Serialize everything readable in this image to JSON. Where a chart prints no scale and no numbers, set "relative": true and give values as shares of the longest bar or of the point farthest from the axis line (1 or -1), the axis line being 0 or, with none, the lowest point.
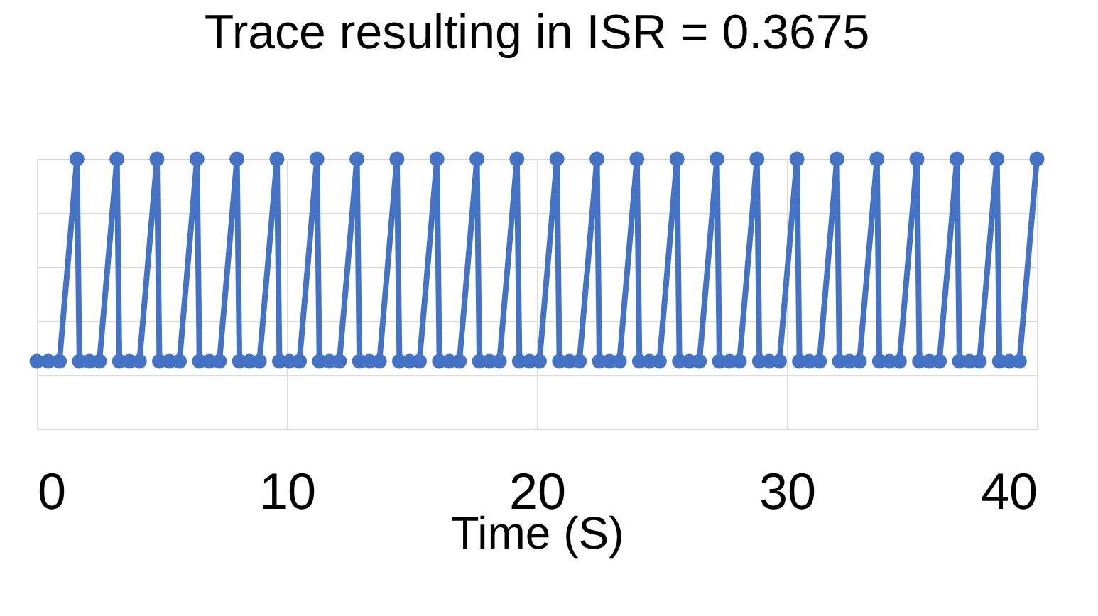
{
  "chart_data": {
    "type": "line",
    "title": "Trace resulting in ISR = 0.3675",
    "xlabel": "Time (S)",
    "relative": true,
    "xlim": [
      0,
      40
    ],
    "xticks": [
      0,
      10,
      20,
      30,
      40
    ],
    "grid": true,
    "marker": "circle",
    "line_style": "solid",
    "tick_labels": "x",
    "series": [
      {
        "color": "#4472c4",
        "x": [
          0,
          0.45,
          0.9,
          1.6,
          1.7,
          2.1,
          2.5,
          3.2,
          3.3,
          3.7,
          4.1,
          4.8,
          4.9,
          5.3,
          5.7,
          6.4,
          6.5,
          6.9,
          7.3,
          8,
          8.1,
          8.5,
          8.9,
          9.6,
          9.7,
          10.1,
          10.5,
          11.2,
          11.3,
          11.7,
          12.1,
          12.8,
          12.9,
          13.3,
          13.7,
          14.4,
          14.5,
          14.9,
          15.3,
          16,
          16.1,
          16.5,
          16.9,
          17.6,
          17.7,
          18.1,
          18.5,
          19.2,
          19.3,
          19.7,
          20.1,
          20.8,
          20.9,
          21.3,
          21.7,
          22.4,
          22.5,
          22.9,
          23.3,
          24,
          24.1,
          24.5,
          24.9,
          25.6,
          25.7,
          26.1,
          26.5,
          27.2,
          27.3,
          27.7,
          28.1,
          28.8,
          28.9,
          29.3,
          29.7,
          30.4,
          30.5,
          30.9,
          31.3,
          32,
          32.1,
          32.5,
          32.9,
          33.6,
          33.7,
          34.1,
          34.5,
          35.2,
          35.3,
          35.7,
          36.1,
          36.8,
          36.9,
          37.3,
          37.7,
          38.4,
          38.5,
          38.9,
          39.3,
          40
        ],
        "values": [
          0.25,
          0.25,
          0.25,
          1,
          0.25,
          0.25,
          0.25,
          1,
          0.25,
          0.25,
          0.25,
          1,
          0.25,
          0.25,
          0.25,
          1,
          0.25,
          0.25,
          0.25,
          1,
          0.25,
          0.25,
          0.25,
          1,
          0.25,
          0.25,
          0.25,
          1,
          0.25,
          0.25,
          0.25,
          1,
          0.25,
          0.25,
          0.25,
          1,
          0.25,
          0.25,
          0.25,
          1,
          0.25,
          0.25,
          0.25,
          1,
          0.25,
          0.25,
          0.25,
          1,
          0.25,
          0.25,
          0.25,
          1,
          0.25,
          0.25,
          0.25,
          1,
          0.25,
          0.25,
          0.25,
          1,
          0.25,
          0.25,
          0.25,
          1,
          0.25,
          0.25,
          0.25,
          1,
          0.25,
          0.25,
          0.25,
          1,
          0.25,
          0.25,
          0.25,
          1,
          0.25,
          0.25,
          0.25,
          1,
          0.25,
          0.25,
          0.25,
          1,
          0.25,
          0.25,
          0.25,
          1,
          0.25,
          0.25,
          0.25,
          1,
          0.25,
          0.25,
          0.25,
          1,
          0.25,
          0.25,
          0.25,
          1
        ]
      }
    ]
  }
}
